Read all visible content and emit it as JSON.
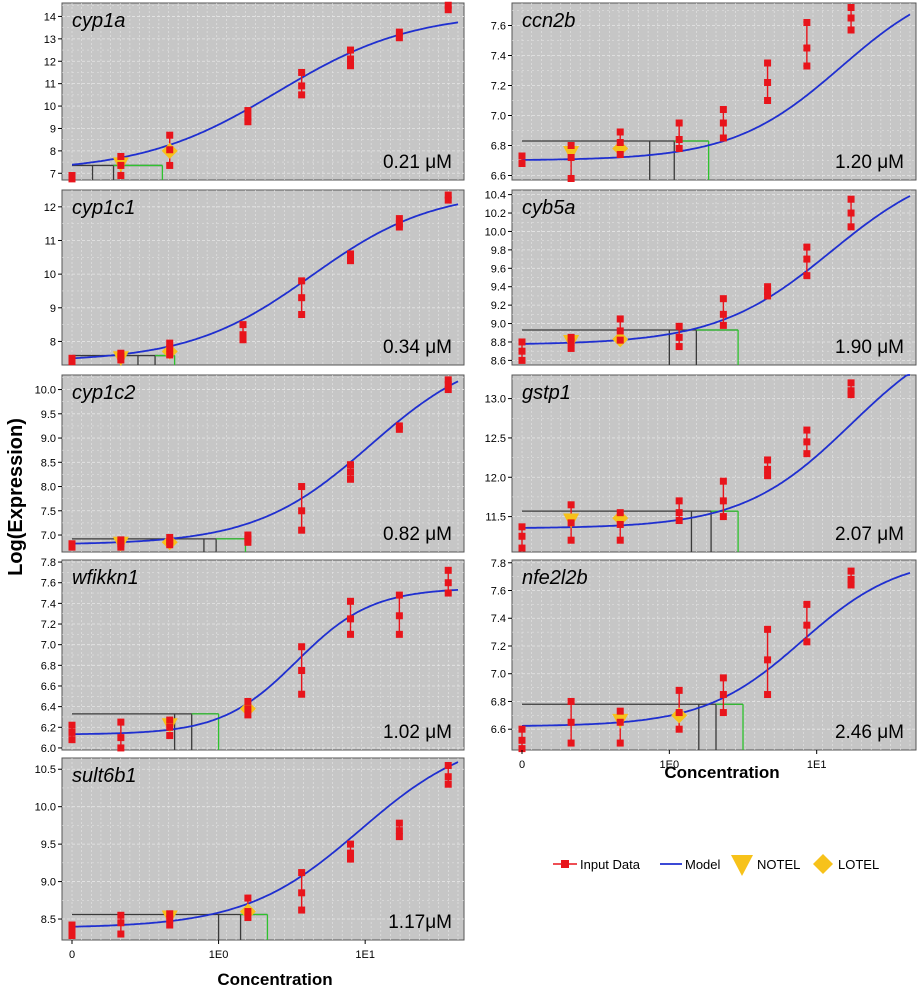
{
  "figure": {
    "y_axis_title": "Log(Expression)",
    "x_axis_title_left": "Concentration",
    "x_axis_title_right": "Concentration",
    "colors": {
      "panel_bg": "#c6c6c6",
      "grid": "#e6e6e6",
      "data": "#e8141b",
      "model": "#1f2fd0",
      "marker": "#f7c21a",
      "bmd_line": "#3a3a3a",
      "bmdl_line": "#2ec22e"
    }
  },
  "legend": {
    "input_data": "Input Data",
    "model": "Model",
    "notel": "NOTEL",
    "lotel": "LOTEL"
  },
  "x_ticks": [
    {
      "label": "0",
      "pos": 0
    },
    {
      "label": "1E0",
      "pos": 3.0
    },
    {
      "label": "1E1",
      "pos": 6.0
    }
  ],
  "chart_data": [
    {
      "type": "scatter",
      "gene": "cyp1a",
      "bmd_label": "0.21 μM",
      "yticks": [
        7,
        8,
        9,
        10,
        11,
        12,
        13,
        14
      ],
      "ylim": [
        6.7,
        14.6
      ],
      "curve": {
        "bottom": 7.05,
        "top": 14.2,
        "ec50": 4.2,
        "slope": 0.72
      },
      "data": [
        [
          0,
          6.9
        ],
        [
          0,
          6.75
        ],
        [
          1,
          7.75
        ],
        [
          1,
          7.35
        ],
        [
          1,
          6.9
        ],
        [
          2,
          8.7
        ],
        [
          2,
          8.05
        ],
        [
          2,
          7.35
        ],
        [
          3.6,
          9.8
        ],
        [
          3.6,
          9.5
        ],
        [
          3.6,
          9.3
        ],
        [
          4.7,
          11.5
        ],
        [
          4.7,
          10.9
        ],
        [
          4.7,
          10.5
        ],
        [
          5.7,
          12.5
        ],
        [
          5.7,
          12.1
        ],
        [
          5.7,
          11.8
        ],
        [
          6.7,
          13.3
        ],
        [
          6.7,
          13.05
        ],
        [
          7.7,
          14.5
        ],
        [
          7.7,
          14.3
        ]
      ],
      "notel": [
        1,
        7.4
      ],
      "lotel": [
        2,
        8.0
      ],
      "bmd": 0.42,
      "bmdl": 0.85,
      "bmdu": 1.85,
      "bmr_y": 7.35
    },
    {
      "type": "scatter",
      "gene": "ccn2b",
      "bmd_label": "1.20 μM",
      "yticks": [
        6.6,
        6.8,
        7.0,
        7.2,
        7.4,
        7.6
      ],
      "ylim": [
        6.57,
        7.75
      ],
      "curve": {
        "bottom": 6.7,
        "top": 7.95,
        "ec50": 6.5,
        "slope": 0.9
      },
      "data": [
        [
          0,
          6.73
        ],
        [
          0,
          6.68
        ],
        [
          1,
          6.8
        ],
        [
          1,
          6.72
        ],
        [
          1,
          6.58
        ],
        [
          2,
          6.89
        ],
        [
          2,
          6.82
        ],
        [
          2,
          6.74
        ],
        [
          3.2,
          6.95
        ],
        [
          3.2,
          6.84
        ],
        [
          3.2,
          6.78
        ],
        [
          4.1,
          7.04
        ],
        [
          4.1,
          6.95
        ],
        [
          4.1,
          6.85
        ],
        [
          5.0,
          7.35
        ],
        [
          5.0,
          7.22
        ],
        [
          5.0,
          7.1
        ],
        [
          5.8,
          7.62
        ],
        [
          5.8,
          7.45
        ],
        [
          5.8,
          7.33
        ],
        [
          6.7,
          7.72
        ],
        [
          6.7,
          7.65
        ],
        [
          6.7,
          7.57
        ]
      ],
      "notel": [
        1,
        6.75
      ],
      "lotel": [
        2,
        6.78
      ],
      "bmd": 2.6,
      "bmdl": 3.1,
      "bmdu": 3.8,
      "bmr_y": 6.83
    },
    {
      "type": "scatter",
      "gene": "cyp1c1",
      "bmd_label": "0.34 μM",
      "yticks": [
        8,
        9,
        10,
        11,
        12
      ],
      "ylim": [
        7.3,
        12.5
      ],
      "curve": {
        "bottom": 7.4,
        "top": 12.5,
        "ec50": 4.9,
        "slope": 0.8
      },
      "data": [
        [
          0,
          7.5
        ],
        [
          0,
          7.4
        ],
        [
          1,
          7.65
        ],
        [
          1,
          7.55
        ],
        [
          1,
          7.45
        ],
        [
          2,
          7.95
        ],
        [
          2,
          7.8
        ],
        [
          2,
          7.6
        ],
        [
          3.5,
          8.5
        ],
        [
          3.5,
          8.2
        ],
        [
          3.5,
          8.05
        ],
        [
          4.7,
          9.8
        ],
        [
          4.7,
          9.3
        ],
        [
          4.7,
          8.8
        ],
        [
          5.7,
          10.6
        ],
        [
          5.7,
          10.45
        ],
        [
          5.7,
          10.4
        ],
        [
          6.7,
          11.65
        ],
        [
          6.7,
          11.5
        ],
        [
          6.7,
          11.4
        ],
        [
          7.7,
          12.35
        ],
        [
          7.7,
          12.2
        ]
      ],
      "notel": [
        1,
        7.5
      ],
      "lotel": [
        2,
        7.7
      ],
      "bmd": 1.35,
      "bmdl": 1.7,
      "bmdu": 2.1,
      "bmr_y": 7.58
    },
    {
      "type": "scatter",
      "gene": "cyb5a",
      "bmd_label": "1.90 μM",
      "yticks": [
        8.6,
        8.8,
        9.0,
        9.2,
        9.4,
        9.6,
        9.8,
        10.0,
        10.2,
        10.4
      ],
      "ylim": [
        8.55,
        10.45
      ],
      "curve": {
        "bottom": 8.77,
        "top": 10.8,
        "ec50": 6.3,
        "slope": 0.85
      },
      "data": [
        [
          0,
          8.8
        ],
        [
          0,
          8.7
        ],
        [
          0,
          8.6
        ],
        [
          1,
          8.85
        ],
        [
          1,
          8.8
        ],
        [
          1,
          8.73
        ],
        [
          2,
          9.05
        ],
        [
          2,
          8.92
        ],
        [
          2,
          8.82
        ],
        [
          3.2,
          8.97
        ],
        [
          3.2,
          8.85
        ],
        [
          3.2,
          8.75
        ],
        [
          4.1,
          9.27
        ],
        [
          4.1,
          9.1
        ],
        [
          4.1,
          8.98
        ],
        [
          5.0,
          9.4
        ],
        [
          5.0,
          9.35
        ],
        [
          5.0,
          9.3
        ],
        [
          5.8,
          9.83
        ],
        [
          5.8,
          9.7
        ],
        [
          5.8,
          9.52
        ],
        [
          6.7,
          10.35
        ],
        [
          6.7,
          10.2
        ],
        [
          6.7,
          10.05
        ]
      ],
      "notel": [
        1,
        8.8
      ],
      "lotel": [
        2,
        8.83
      ],
      "bmd": 3.0,
      "bmdl": 3.55,
      "bmdu": 4.4,
      "bmr_y": 8.93
    },
    {
      "type": "scatter",
      "gene": "cyp1c2",
      "bmd_label": "0.82 μM",
      "yticks": [
        7.0,
        7.5,
        8.0,
        8.5,
        9.0,
        9.5,
        10.0
      ],
      "ylim": [
        6.65,
        10.3
      ],
      "curve": {
        "bottom": 6.8,
        "top": 10.9,
        "ec50": 6.1,
        "slope": 0.85
      },
      "data": [
        [
          0,
          6.82
        ],
        [
          0,
          6.75
        ],
        [
          1,
          6.9
        ],
        [
          1,
          6.82
        ],
        [
          1,
          6.75
        ],
        [
          2,
          6.95
        ],
        [
          2,
          6.87
        ],
        [
          2,
          6.8
        ],
        [
          3.6,
          7.0
        ],
        [
          3.6,
          6.92
        ],
        [
          3.6,
          6.85
        ],
        [
          4.7,
          8.0
        ],
        [
          4.7,
          7.5
        ],
        [
          4.7,
          7.1
        ],
        [
          5.7,
          8.45
        ],
        [
          5.7,
          8.3
        ],
        [
          5.7,
          8.15
        ],
        [
          6.7,
          9.25
        ],
        [
          6.7,
          9.18
        ],
        [
          7.7,
          10.2
        ],
        [
          7.7,
          10.1
        ],
        [
          7.7,
          10.0
        ]
      ],
      "notel": [
        1,
        6.82
      ],
      "lotel": [
        2,
        6.85
      ],
      "bmd": 2.7,
      "bmdl": 2.95,
      "bmdu": 3.55,
      "bmr_y": 6.92
    },
    {
      "type": "scatter",
      "gene": "gstp1",
      "bmd_label": "2.07 μM",
      "yticks": [
        11.5,
        12.0,
        12.5,
        13.0
      ],
      "ylim": [
        11.05,
        13.3
      ],
      "curve": {
        "bottom": 11.35,
        "top": 14.0,
        "ec50": 6.7,
        "slope": 0.9
      },
      "data": [
        [
          0,
          11.37
        ],
        [
          0,
          11.25
        ],
        [
          0,
          11.1
        ],
        [
          1,
          11.65
        ],
        [
          1,
          11.42
        ],
        [
          1,
          11.2
        ],
        [
          2,
          11.55
        ],
        [
          2,
          11.4
        ],
        [
          2,
          11.2
        ],
        [
          3.2,
          11.7
        ],
        [
          3.2,
          11.55
        ],
        [
          3.2,
          11.45
        ],
        [
          4.1,
          11.95
        ],
        [
          4.1,
          11.7
        ],
        [
          4.1,
          11.5
        ],
        [
          5.0,
          12.22
        ],
        [
          5.0,
          12.1
        ],
        [
          5.0,
          12.02
        ],
        [
          5.8,
          12.6
        ],
        [
          5.8,
          12.45
        ],
        [
          5.8,
          12.3
        ],
        [
          6.7,
          13.2
        ],
        [
          6.7,
          13.1
        ],
        [
          6.7,
          13.05
        ]
      ],
      "notel": [
        1,
        11.45
      ],
      "lotel": [
        2,
        11.48
      ],
      "bmd": 3.45,
      "bmdl": 3.85,
      "bmdu": 4.4,
      "bmr_y": 11.57
    },
    {
      "type": "scatter",
      "gene": "wfikkn1",
      "bmd_label": "1.02 μM",
      "yticks": [
        6.0,
        6.2,
        6.4,
        6.6,
        6.8,
        7.0,
        7.2,
        7.4,
        7.6,
        7.8
      ],
      "ylim": [
        5.98,
        7.82
      ],
      "curve": {
        "bottom": 6.13,
        "top": 7.55,
        "ec50": 4.6,
        "slope": 1.3
      },
      "data": [
        [
          0,
          6.22
        ],
        [
          0,
          6.15
        ],
        [
          0,
          6.08
        ],
        [
          1,
          6.25
        ],
        [
          1,
          6.1
        ],
        [
          1,
          6.0
        ],
        [
          2,
          6.27
        ],
        [
          2,
          6.2
        ],
        [
          2,
          6.12
        ],
        [
          3.6,
          6.45
        ],
        [
          3.6,
          6.38
        ],
        [
          3.6,
          6.32
        ],
        [
          4.7,
          6.98
        ],
        [
          4.7,
          6.75
        ],
        [
          4.7,
          6.52
        ],
        [
          5.7,
          7.42
        ],
        [
          5.7,
          7.25
        ],
        [
          5.7,
          7.1
        ],
        [
          6.7,
          7.48
        ],
        [
          6.7,
          7.28
        ],
        [
          6.7,
          7.1
        ],
        [
          7.7,
          7.72
        ],
        [
          7.7,
          7.6
        ],
        [
          7.7,
          7.5
        ]
      ],
      "notel": [
        2,
        6.22
      ],
      "lotel": [
        3.6,
        6.38
      ],
      "bmd": 2.1,
      "bmdl": 2.45,
      "bmdu": 3.0,
      "bmr_y": 6.33
    },
    {
      "type": "scatter",
      "gene": "nfe2l2b",
      "bmd_label": "2.46 μM",
      "yticks": [
        6.6,
        6.8,
        7.0,
        7.2,
        7.4,
        7.6,
        7.8
      ],
      "ylim": [
        6.45,
        7.82
      ],
      "curve": {
        "bottom": 6.62,
        "top": 7.85,
        "ec50": 5.7,
        "slope": 1.0
      },
      "data": [
        [
          0,
          6.6
        ],
        [
          0,
          6.52
        ],
        [
          0,
          6.46
        ],
        [
          1,
          6.8
        ],
        [
          1,
          6.65
        ],
        [
          1,
          6.5
        ],
        [
          2,
          6.73
        ],
        [
          2,
          6.65
        ],
        [
          2,
          6.5
        ],
        [
          3.2,
          6.88
        ],
        [
          3.2,
          6.72
        ],
        [
          3.2,
          6.6
        ],
        [
          4.1,
          6.97
        ],
        [
          4.1,
          6.85
        ],
        [
          4.1,
          6.72
        ],
        [
          5.0,
          7.32
        ],
        [
          5.0,
          7.1
        ],
        [
          5.0,
          6.85
        ],
        [
          5.8,
          7.5
        ],
        [
          5.8,
          7.35
        ],
        [
          5.8,
          7.23
        ],
        [
          6.7,
          7.74
        ],
        [
          6.7,
          7.68
        ],
        [
          6.7,
          7.64
        ]
      ],
      "notel": [
        2,
        6.66
      ],
      "lotel": [
        3.2,
        6.7
      ],
      "bmd": 3.6,
      "bmdl": 3.95,
      "bmdu": 4.5,
      "bmr_y": 6.78
    },
    {
      "type": "scatter",
      "gene": "sult6b1",
      "bmd_label": "1.17μM",
      "yticks": [
        8.5,
        9.0,
        9.5,
        10.0,
        10.5
      ],
      "ylim": [
        8.22,
        10.65
      ],
      "curve": {
        "bottom": 8.38,
        "top": 11.0,
        "ec50": 5.9,
        "slope": 0.85
      },
      "data": [
        [
          0,
          8.42
        ],
        [
          0,
          8.35
        ],
        [
          0,
          8.28
        ],
        [
          1,
          8.55
        ],
        [
          1,
          8.45
        ],
        [
          1,
          8.3
        ],
        [
          2,
          8.57
        ],
        [
          2,
          8.5
        ],
        [
          2,
          8.42
        ],
        [
          3.6,
          8.78
        ],
        [
          3.6,
          8.6
        ],
        [
          3.6,
          8.52
        ],
        [
          4.7,
          9.12
        ],
        [
          4.7,
          8.85
        ],
        [
          4.7,
          8.62
        ],
        [
          5.7,
          9.5
        ],
        [
          5.7,
          9.38
        ],
        [
          5.7,
          9.3
        ],
        [
          6.7,
          9.78
        ],
        [
          6.7,
          9.68
        ],
        [
          6.7,
          9.6
        ],
        [
          7.7,
          10.55
        ],
        [
          7.7,
          10.4
        ],
        [
          7.7,
          10.3
        ]
      ],
      "notel": [
        2,
        8.52
      ],
      "lotel": [
        3.6,
        8.6
      ],
      "bmd": 3.0,
      "bmdl": 3.45,
      "bmdu": 4.0,
      "bmr_y": 8.56
    }
  ]
}
